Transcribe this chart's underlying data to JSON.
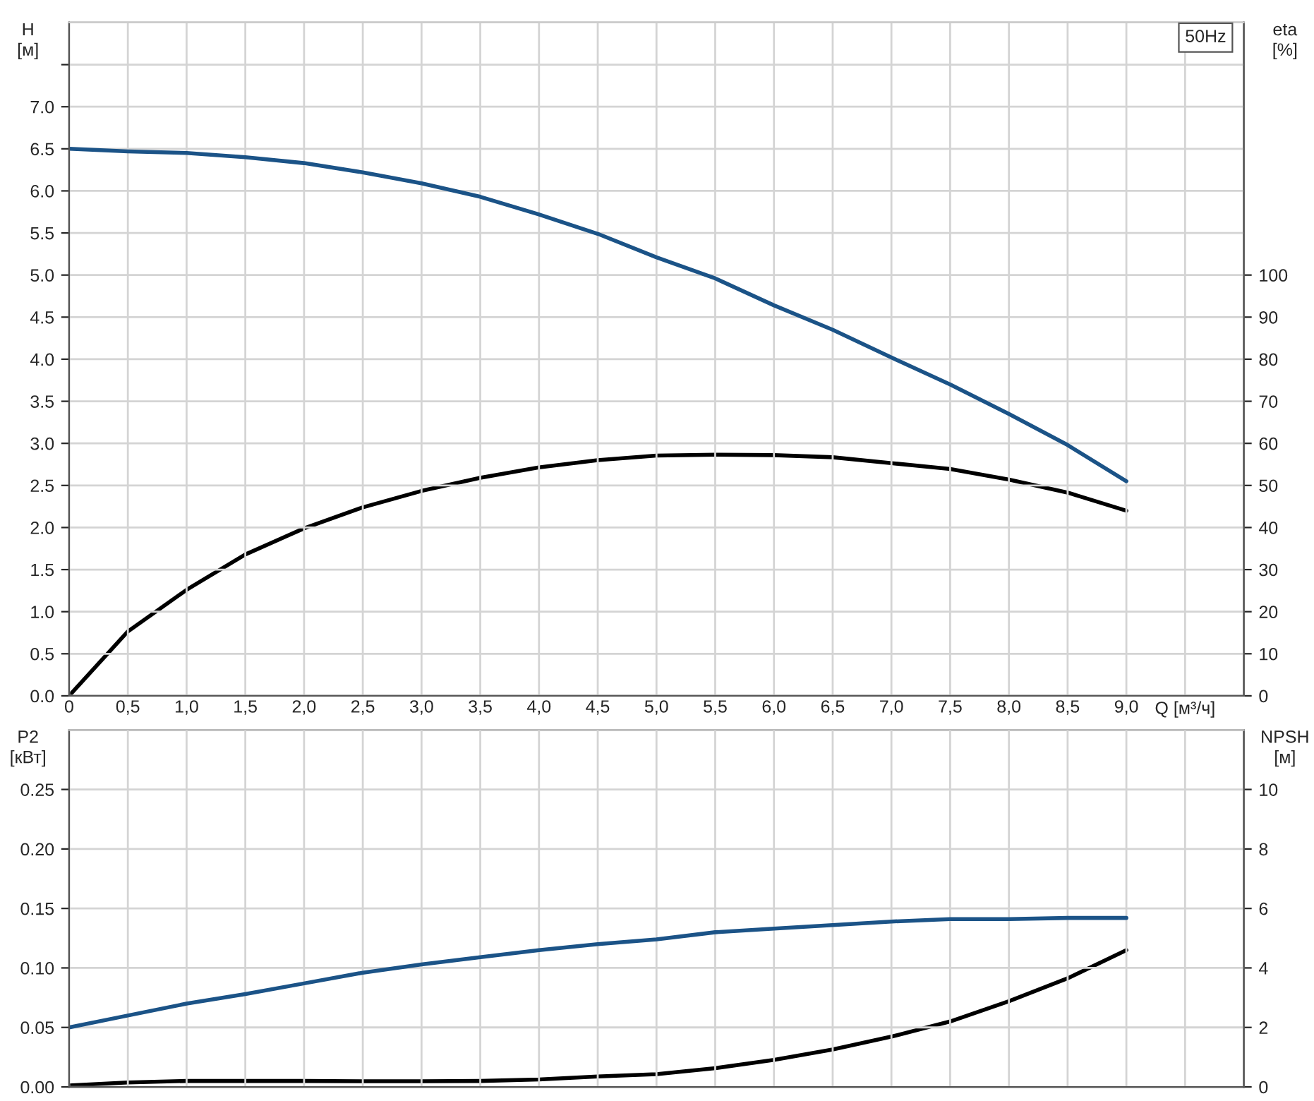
{
  "chart_data": [
    {
      "type": "line",
      "xlabel": "Q [м³/ч]",
      "ylabel": "H\n[м]",
      "y2label": "eta\n[%]",
      "annotations": [
        "50Hz"
      ],
      "grid": true,
      "xlim": [
        0,
        10
      ],
      "xticks": [
        0,
        {
          "value": 0.5,
          "label": "0,5"
        },
        {
          "value": 1,
          "label": "1,0"
        },
        {
          "value": 1.5,
          "label": "1,5"
        },
        {
          "value": 2,
          "label": "2,0"
        },
        {
          "value": 2.5,
          "label": "2,5"
        },
        {
          "value": 3,
          "label": "3,0"
        },
        {
          "value": 3.5,
          "label": "3,5"
        },
        {
          "value": 4,
          "label": "4,0"
        },
        {
          "value": 4.5,
          "label": "4,5"
        },
        {
          "value": 5,
          "label": "5,0"
        },
        {
          "value": 5.5,
          "label": "5,5"
        },
        {
          "value": 6,
          "label": "6,0"
        },
        {
          "value": 6.5,
          "label": "6,5"
        },
        {
          "value": 7,
          "label": "7,0"
        },
        {
          "value": 7.5,
          "label": "7,5"
        },
        {
          "value": 8,
          "label": "8,0"
        },
        {
          "value": 8.5,
          "label": "8,5"
        },
        {
          "value": 9,
          "label": "9,0"
        },
        {
          "value": 9.5,
          "label": null
        }
      ],
      "ylim": [
        0,
        8
      ],
      "yticks": [
        {
          "value": 0,
          "label": "0.0"
        },
        0.5,
        {
          "value": 1,
          "label": "1.0"
        },
        1.5,
        {
          "value": 2,
          "label": "2.0"
        },
        2.5,
        {
          "value": 3,
          "label": "3.0"
        },
        3.5,
        {
          "value": 4,
          "label": "4.0"
        },
        4.5,
        {
          "value": 5,
          "label": "5.0"
        },
        5.5,
        {
          "value": 6,
          "label": "6.0"
        },
        6.5,
        {
          "value": 7,
          "label": "7.0"
        },
        {
          "value": 7.5,
          "label": null
        }
      ],
      "y2lim": [
        0,
        160
      ],
      "y2ticks": [
        0,
        10,
        20,
        30,
        40,
        50,
        60,
        70,
        80,
        90,
        100
      ],
      "x": [
        0,
        0.5,
        1.0,
        1.5,
        2.0,
        2.5,
        3.0,
        3.5,
        4.0,
        4.5,
        5.0,
        5.5,
        6.0,
        6.5,
        7.0,
        7.5,
        8.0,
        8.5,
        9.0
      ],
      "series": [
        {
          "color": "#1b5387",
          "values": [
            6.5,
            6.47,
            6.45,
            6.4,
            6.33,
            6.22,
            6.09,
            5.93,
            5.72,
            5.49,
            5.21,
            4.96,
            4.64,
            4.35,
            4.02,
            3.7,
            3.35,
            2.98,
            2.55
          ]
        },
        {
          "color": "#000000",
          "axis": "y2",
          "values": [
            0,
            15.3,
            25.2,
            33.6,
            39.8,
            44.8,
            48.7,
            51.8,
            54.3,
            56,
            57.1,
            57.3,
            57.2,
            56.7,
            55.3,
            53.9,
            51.4,
            48.3,
            44
          ]
        }
      ]
    },
    {
      "type": "line",
      "ylabel": "P2\n[кВт]",
      "y2label": "NPSH\n[м]",
      "grid": true,
      "tick_labels": "y",
      "xlim": [
        0,
        10
      ],
      "xticks": [
        {
          "value": 0,
          "label": null
        },
        {
          "value": 0.5,
          "label": null
        },
        {
          "value": 1,
          "label": null
        },
        {
          "value": 1.5,
          "label": null
        },
        {
          "value": 2,
          "label": null
        },
        {
          "value": 2.5,
          "label": null
        },
        {
          "value": 3,
          "label": null
        },
        {
          "value": 3.5,
          "label": null
        },
        {
          "value": 4,
          "label": null
        },
        {
          "value": 4.5,
          "label": null
        },
        {
          "value": 5,
          "label": null
        },
        {
          "value": 5.5,
          "label": null
        },
        {
          "value": 6,
          "label": null
        },
        {
          "value": 6.5,
          "label": null
        },
        {
          "value": 7,
          "label": null
        },
        {
          "value": 7.5,
          "label": null
        },
        {
          "value": 8,
          "label": null
        },
        {
          "value": 8.5,
          "label": null
        },
        {
          "value": 9,
          "label": null
        },
        {
          "value": 9.5,
          "label": null
        }
      ],
      "ylim": [
        0,
        0.3
      ],
      "yticks": [
        {
          "value": 0,
          "label": "0.00"
        },
        {
          "value": 0.05,
          "label": "0.05"
        },
        {
          "value": 0.1,
          "label": "0.10"
        },
        {
          "value": 0.15,
          "label": "0.15"
        },
        {
          "value": 0.2,
          "label": "0.20"
        },
        {
          "value": 0.25,
          "label": "0.25"
        }
      ],
      "y2lim": [
        0,
        12
      ],
      "y2ticks": [
        0,
        2,
        4,
        6,
        8,
        10
      ],
      "x": [
        0,
        0.5,
        1.0,
        1.5,
        2.0,
        2.5,
        3.0,
        3.5,
        4.0,
        4.5,
        5.0,
        5.5,
        6.0,
        6.5,
        7.0,
        7.5,
        8.0,
        8.5,
        9.0
      ],
      "series": [
        {
          "color": "#1b5387",
          "values": [
            0.05,
            0.06,
            0.07,
            0.078,
            0.087,
            0.096,
            0.103,
            0.109,
            0.115,
            0.12,
            0.124,
            0.13,
            0.133,
            0.136,
            0.139,
            0.141,
            0.141,
            0.142,
            0.142
          ]
        },
        {
          "color": "#000000",
          "axis": "y2",
          "values": [
            0.05,
            0.15,
            0.2,
            0.2,
            0.2,
            0.19,
            0.19,
            0.2,
            0.25,
            0.35,
            0.43,
            0.63,
            0.91,
            1.26,
            1.69,
            2.2,
            2.88,
            3.65,
            4.6
          ]
        }
      ]
    }
  ]
}
